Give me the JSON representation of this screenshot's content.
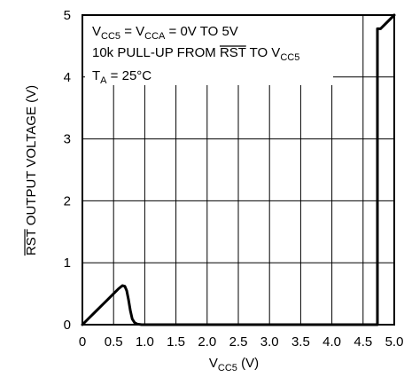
{
  "chart_data": {
    "type": "line",
    "xlabel": "V",
    "xlabel_sub": "CC5",
    "xlabel_unit": " (V)",
    "ylabel_overbar": "RST",
    "ylabel_rest": " OUTPUT VOLTAGE (V)",
    "xlim": [
      0,
      5
    ],
    "ylim": [
      0,
      5
    ],
    "x_ticks": [
      "0",
      "0.5",
      "1.0",
      "1.5",
      "2.0",
      "2.5",
      "3.0",
      "3.5",
      "4.0",
      "4.5",
      "5.0"
    ],
    "y_ticks": [
      "0",
      "1",
      "2",
      "3",
      "4",
      "5"
    ],
    "grid": true,
    "annotations": {
      "line1": {
        "a": "V",
        "a_sub": "CC5",
        "eq": " = V",
        "b_sub": "CCA",
        "rest": " = 0V TO 5V"
      },
      "line2": {
        "pre": "10k PULL-UP FROM ",
        "overbar": "RST",
        "mid": " TO V",
        "sub": "CC5"
      },
      "line3": {
        "pre": "T",
        "sub": "A",
        "rest": " = 25°C"
      }
    },
    "series": [
      {
        "x": [
          0,
          0.1,
          0.2,
          0.3,
          0.4,
          0.5,
          0.58,
          0.64,
          0.68,
          0.71,
          0.74,
          0.77,
          0.8,
          0.84,
          0.88,
          0.95,
          1.0,
          2.0,
          3.0,
          4.0,
          4.73,
          4.73,
          4.78,
          5.0
        ],
        "y": [
          0,
          0.1,
          0.2,
          0.3,
          0.4,
          0.5,
          0.58,
          0.63,
          0.62,
          0.55,
          0.4,
          0.22,
          0.09,
          0.03,
          0.01,
          0,
          0,
          0,
          0,
          0,
          0,
          4.78,
          4.78,
          5.0
        ]
      }
    ]
  }
}
